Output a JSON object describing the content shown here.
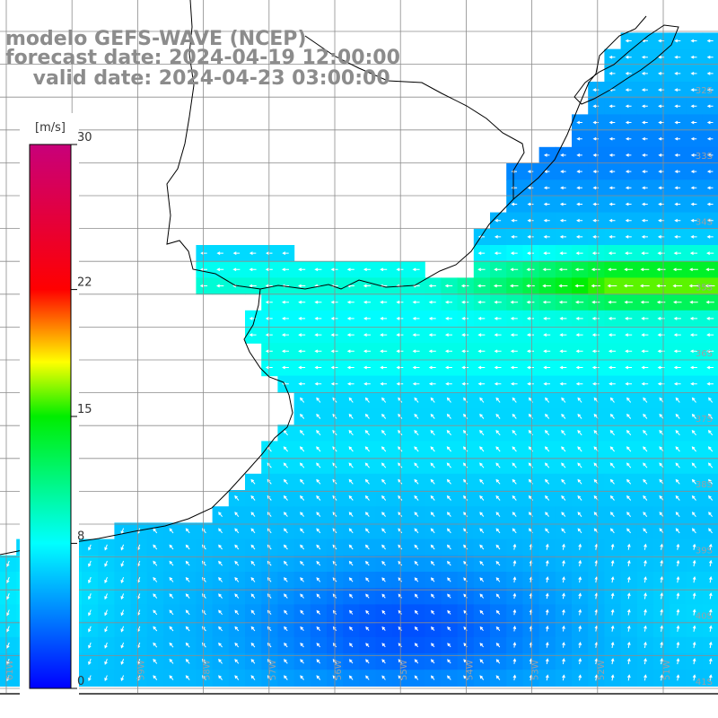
{
  "title": {
    "line1": "modelo GEFS-WAVE (NCEP)",
    "line2": "forecast date: 2024-04-19 12:00:00",
    "line3": "    valid date: 2024-04-23 03:00:00"
  },
  "colorbar": {
    "unit": "[m/s]",
    "ticks": [
      {
        "value": 30,
        "label": "30"
      },
      {
        "value": 22,
        "label": "22"
      },
      {
        "value": 15,
        "label": "15"
      },
      {
        "value": 8,
        "label": "8"
      },
      {
        "value": 0,
        "label": "0"
      }
    ],
    "stops": [
      {
        "value": 0,
        "color": "#0000ff"
      },
      {
        "value": 8,
        "color": "#00ffff"
      },
      {
        "value": 15,
        "color": "#00ee00"
      },
      {
        "value": 18,
        "color": "#ffff00"
      },
      {
        "value": 22,
        "color": "#ff0000"
      },
      {
        "value": 30,
        "color": "#c8007a"
      }
    ]
  },
  "lat_labels": [
    "32S",
    "33S",
    "34S",
    "35S",
    "36S",
    "37S",
    "38S",
    "39S",
    "40S",
    "41S"
  ],
  "lon_labels": [
    "61W",
    "60W",
    "59W",
    "58W",
    "57W",
    "56W",
    "55W",
    "54W",
    "53W",
    "52W",
    "51W"
  ],
  "colors": {
    "grid": "#8c8c8c",
    "coast": "#000000",
    "title": "#8c8c8c",
    "arrow": "#ffffff"
  }
}
